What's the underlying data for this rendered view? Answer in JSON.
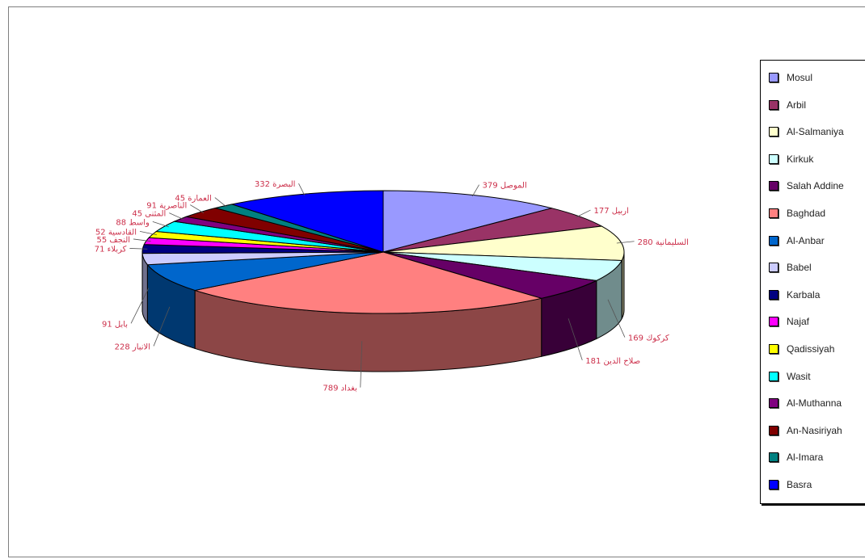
{
  "chart_data": {
    "type": "pie",
    "variant": "3d-exploded-none",
    "categories": [
      "Mosul",
      "Arbil",
      "Al-Salmaniya",
      "Kirkuk",
      "Salah Addine",
      "Baghdad",
      "Al-Anbar",
      "Babel",
      "Karbala",
      "Najaf",
      "Qadissiyah",
      "Wasit",
      "Al-Muthanna",
      "An-Nasiriyah",
      "Al-Imara",
      "Basra"
    ],
    "values": [
      379,
      177,
      280,
      169,
      181,
      789,
      228,
      91,
      71,
      55,
      52,
      88,
      45,
      91,
      45,
      332
    ],
    "data_labels": [
      "الموصل 379",
      "اربيل 177",
      "السليمانية 280",
      "كركوك 169",
      "صلاح الدين 181",
      "بغداد 789",
      "الانبار 228",
      "بابل 91",
      "كربلاء 71",
      "النجف 55",
      "القادسية 52",
      "واسط 88",
      "المثنى 45",
      "الناصرية 91",
      "العمارة 45",
      "البصرة 332"
    ],
    "colors": [
      "#9999ff",
      "#993366",
      "#ffffcc",
      "#ccffff",
      "#660066",
      "#ff8080",
      "#0066cc",
      "#ccccff",
      "#000080",
      "#ff00ff",
      "#ffff00",
      "#00ffff",
      "#800080",
      "#800000",
      "#008080",
      "#0000ff"
    ],
    "legend_position": "right",
    "grid": false
  }
}
